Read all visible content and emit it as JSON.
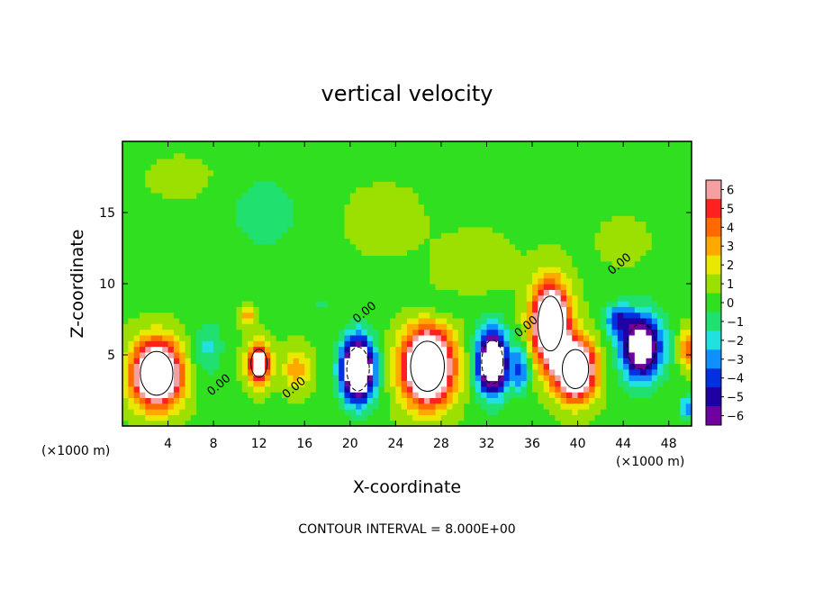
{
  "chart_data": {
    "type": "heatmap",
    "title": "vertical velocity",
    "xlabel": "X-coordinate",
    "ylabel": "Z-coordinate",
    "x_unit_left": "(×1000 m)",
    "x_unit_right": "(×1000 m)",
    "xlim": [
      0,
      50
    ],
    "ylim": [
      0,
      20
    ],
    "xticks": [
      4,
      8,
      12,
      16,
      20,
      24,
      28,
      32,
      36,
      40,
      44,
      48
    ],
    "yticks": [
      5,
      10,
      15
    ],
    "colorbar": {
      "ticks": [
        6,
        5,
        4,
        3,
        2,
        1,
        0,
        -1,
        -2,
        -3,
        -4,
        -5,
        -6
      ],
      "colors": [
        "#f4a0a0",
        "#ff2020",
        "#ff6a00",
        "#ffa800",
        "#e8e800",
        "#9be000",
        "#30e020",
        "#20e070",
        "#20e0e0",
        "#1090ff",
        "#0030e0",
        "#2000a0",
        "#7000a0"
      ]
    },
    "contour_interval_text": "CONTOUR INTERVAL = 8.000E+00",
    "contour_labels": [
      "0.00",
      "0.00",
      "0.00",
      "0.00",
      "0.00"
    ],
    "grid": false,
    "blobs": [
      {
        "x": 3,
        "z": 3.7,
        "rx": 2.6,
        "rz": 2.8,
        "v": 12
      },
      {
        "x": 12,
        "z": 4.4,
        "rx": 1.3,
        "rz": 1.8,
        "v": 8
      },
      {
        "x": 11,
        "z": 7.7,
        "rx": 0.9,
        "rz": 0.8,
        "v": 3
      },
      {
        "x": 15.3,
        "z": 4.0,
        "rx": 1.4,
        "rz": 1.8,
        "v": 3
      },
      {
        "x": 20.7,
        "z": 4.0,
        "rx": 1.8,
        "rz": 2.8,
        "v": -12
      },
      {
        "x": 26.8,
        "z": 4.2,
        "rx": 2.7,
        "rz": 3.2,
        "v": 13
      },
      {
        "x": 32.5,
        "z": 4.5,
        "rx": 1.7,
        "rz": 2.8,
        "v": -11
      },
      {
        "x": 37.6,
        "z": 7.2,
        "rx": 2.0,
        "rz": 3.5,
        "v": 12
      },
      {
        "x": 39.8,
        "z": 4.0,
        "rx": 2.1,
        "rz": 2.5,
        "v": 12
      },
      {
        "x": 35.0,
        "z": 4.0,
        "rx": 1.0,
        "rz": 2.0,
        "v": -4
      },
      {
        "x": 45.6,
        "z": 5.6,
        "rx": 2.3,
        "rz": 2.9,
        "v": -9
      },
      {
        "x": 43.5,
        "z": 7.5,
        "rx": 1.5,
        "rz": 1.4,
        "v": -4
      },
      {
        "x": 49.6,
        "z": 5.5,
        "rx": 0.9,
        "rz": 1.6,
        "v": 4
      },
      {
        "x": 49.6,
        "z": 1.3,
        "rx": 0.7,
        "rz": 1.0,
        "v": -4
      },
      {
        "x": 7.5,
        "z": 5.5,
        "rx": 1.7,
        "rz": 2.5,
        "v": -2
      },
      {
        "x": 12.5,
        "z": 15.0,
        "rx": 3.5,
        "rz": 3.0,
        "v": -1.8
      },
      {
        "x": 23.0,
        "z": 14.5,
        "rx": 3.5,
        "rz": 2.5,
        "v": 1.2
      },
      {
        "x": 31.0,
        "z": 11.5,
        "rx": 4.0,
        "rz": 2.5,
        "v": 1.0
      },
      {
        "x": 44.0,
        "z": 13.0,
        "rx": 2.5,
        "rz": 2.0,
        "v": 0.8
      },
      {
        "x": 5.0,
        "z": 17.5,
        "rx": 4.0,
        "rz": 2.0,
        "v": 0.5
      },
      {
        "x": 17.5,
        "z": 8.5,
        "rx": 2.0,
        "rz": 1.2,
        "v": -0.9
      },
      {
        "x": 28.0,
        "z": 8.3,
        "rx": 3.0,
        "rz": 1.0,
        "v": -0.9
      }
    ]
  }
}
